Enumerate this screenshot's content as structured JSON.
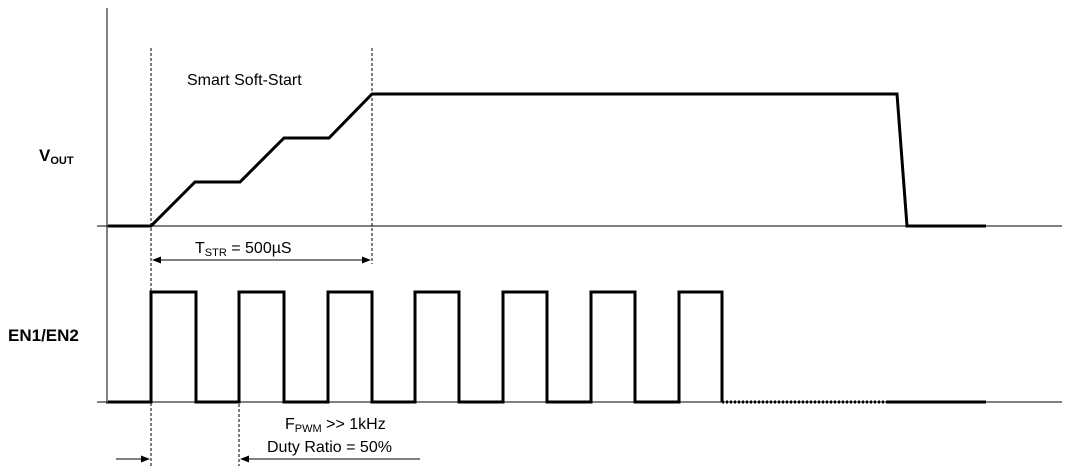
{
  "labels": {
    "vout_main": "V",
    "vout_sub": "OUT",
    "en": "EN1/EN2",
    "soft_start": "Smart Soft-Start",
    "tstr_main": "T",
    "tstr_sub": "STR",
    "tstr_value": " = 500µS",
    "fpwm_main": "F",
    "fpwm_sub": "PWM",
    "fpwm_value": " >> 1kHz",
    "duty": "Duty Ratio = 50%"
  }
}
